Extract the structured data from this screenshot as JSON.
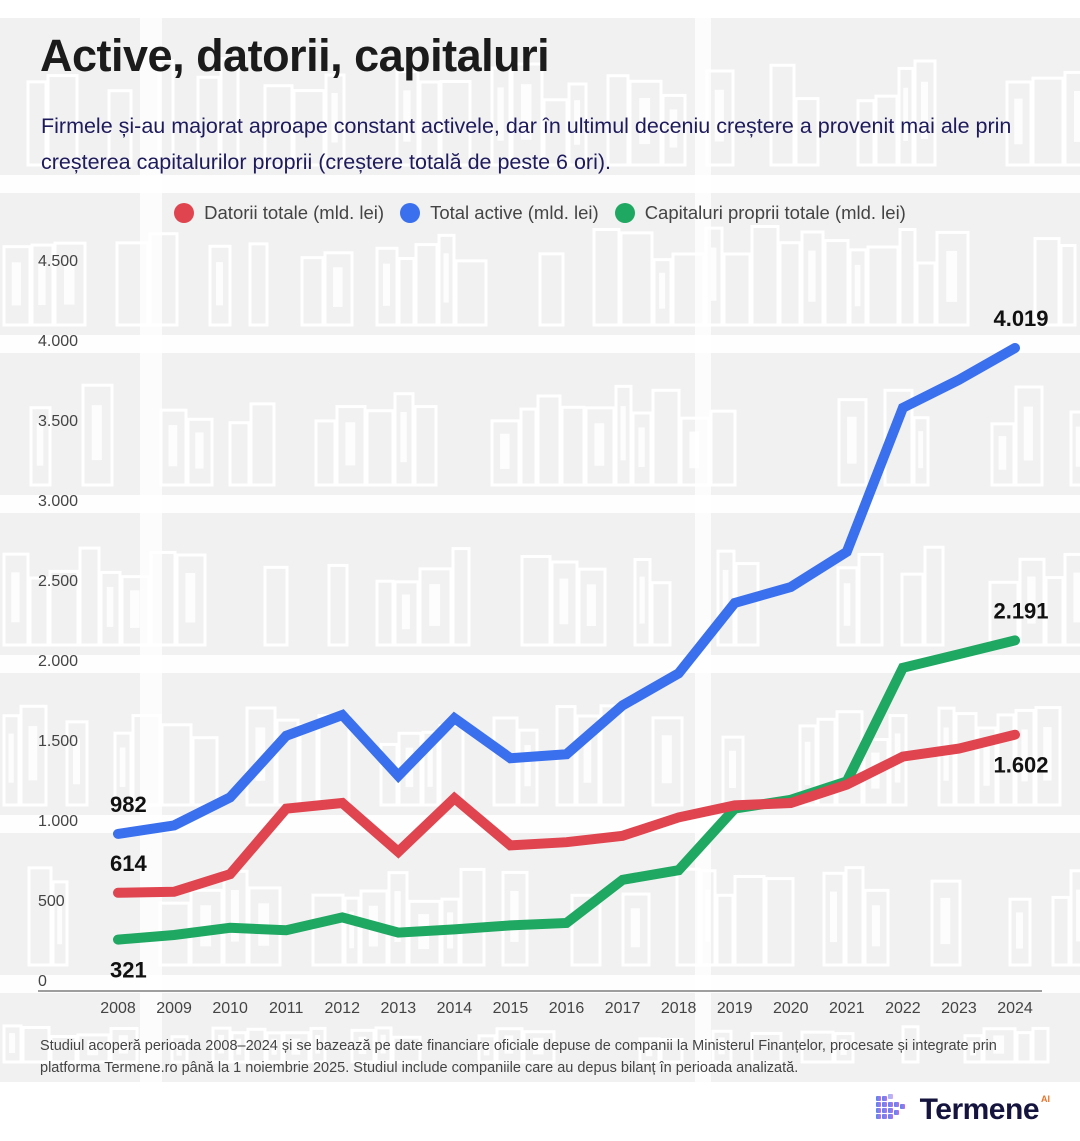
{
  "header": {
    "title": "Active, datorii, capitaluri",
    "subtitle": "Firmele și-au majorat aproape constant activele, dar în ultimul deceniu creștere a provenit mai ale prin creșterea capitalurilor proprii (creștere totală de peste 6 ori)."
  },
  "legend": [
    {
      "label": "Datorii totale (mld. lei)",
      "color": "#e0444f"
    },
    {
      "label": "Total active (mld. lei)",
      "color": "#3a70ee"
    },
    {
      "label": "Capitaluri proprii totale (mld. lei)",
      "color": "#1fa862"
    }
  ],
  "footnote": "Studiul acoperă perioada 2008–2024 și se bazează pe date financiare oficiale depuse de companii la Ministerul Finanțelor, procesate și integrate prin platforma Termene.ro până la 1 noiembrie 2025. Studiul include  companiile care au depus bilanț în perioada analizată.",
  "logo": {
    "text": "Termene",
    "superscript": "AI",
    "icon": "cube-grid-icon"
  },
  "chart_data": {
    "type": "line",
    "title": "Active, datorii, capitaluri",
    "xlabel": "",
    "ylabel": "",
    "ylim": [
      0,
      4500
    ],
    "yticks": [
      0,
      500,
      1000,
      1500,
      2000,
      2500,
      3000,
      3500,
      4000,
      4500
    ],
    "ytick_labels": [
      "0",
      "500",
      "1.000",
      "1.500",
      "2.000",
      "2.500",
      "3.000",
      "3.500",
      "4.000",
      "4.500"
    ],
    "grid": false,
    "legend_position": "top-center",
    "x": [
      "2008",
      "2009",
      "2010",
      "2011",
      "2012",
      "2013",
      "2014",
      "2015",
      "2016",
      "2017",
      "2018",
      "2019",
      "2020",
      "2021",
      "2022",
      "2023",
      "2024"
    ],
    "series": [
      {
        "name": "Datorii totale (mld. lei)",
        "color": "#e0444f",
        "values": [
          614,
          620,
          730,
          1140,
          1175,
          870,
          1205,
          910,
          930,
          970,
          1085,
          1160,
          1175,
          1290,
          1465,
          1515,
          1602
        ],
        "labels": [
          {
            "index": 0,
            "text": "614",
            "position": "above"
          },
          {
            "index": 16,
            "text": "1.602",
            "position": "below"
          }
        ]
      },
      {
        "name": "Total active (mld. lei)",
        "color": "#3a70ee",
        "values": [
          982,
          1035,
          1210,
          1595,
          1725,
          1345,
          1705,
          1455,
          1480,
          1785,
          1985,
          2425,
          2525,
          2745,
          3645,
          3820,
          4019
        ],
        "labels": [
          {
            "index": 0,
            "text": "982",
            "position": "above"
          },
          {
            "index": 16,
            "text": "4.019",
            "position": "above"
          }
        ]
      },
      {
        "name": "Capitaluri proprii totale (mld. lei)",
        "color": "#1fa862",
        "values": [
          321,
          350,
          395,
          380,
          460,
          365,
          385,
          410,
          425,
          695,
          755,
          1140,
          1195,
          1310,
          2020,
          2105,
          2191
        ],
        "labels": [
          {
            "index": 0,
            "text": "321",
            "position": "below"
          },
          {
            "index": 16,
            "text": "2.191",
            "position": "above"
          }
        ]
      }
    ]
  }
}
